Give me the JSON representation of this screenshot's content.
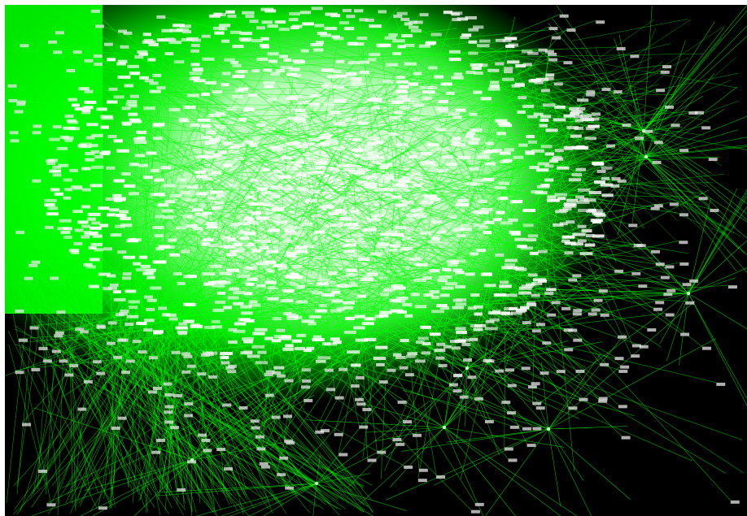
{
  "view": {
    "background": "#000000",
    "frame_color": "#ffffff",
    "edge_color": "#00ff00",
    "label_color": "#e8e8e8"
  },
  "graph": {
    "type": "force-directed network",
    "labels_legible": false
  }
}
